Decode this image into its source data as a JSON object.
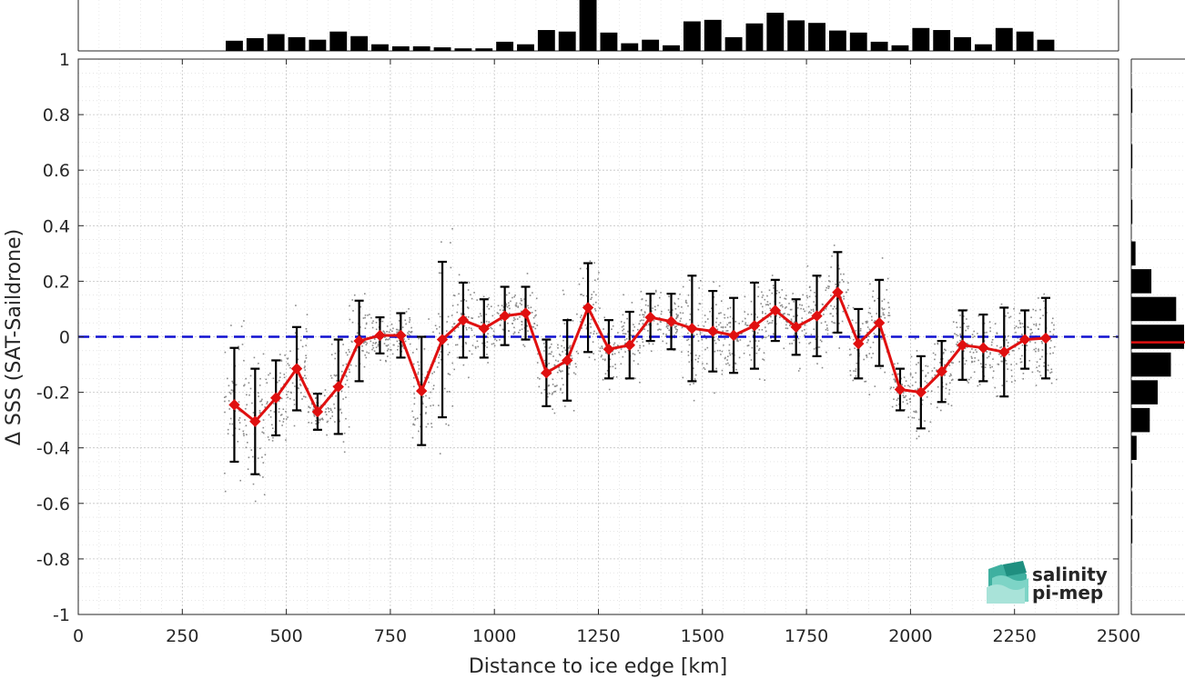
{
  "chart_data": {
    "type": "line",
    "xlabel": "Distance to ice edge [km]",
    "ylabel": "Δ SSS (SAT-Saildrone)",
    "xlim": [
      0,
      2500
    ],
    "ylim": [
      -1,
      1
    ],
    "x_ticks": [
      "0",
      "250",
      "500",
      "750",
      "1000",
      "1250",
      "1500",
      "1750",
      "2000",
      "2250",
      "2500"
    ],
    "y_ticks": [
      "-1",
      "-0.8",
      "-0.6",
      "-0.4",
      "-0.2",
      "0",
      "0.2",
      "0.4",
      "0.6",
      "0.8",
      "1"
    ],
    "grid": true,
    "reference_line": {
      "y": 0,
      "style": "dashed",
      "color": "#1010d0"
    },
    "series": [
      {
        "style": "red-line-with-diamonds",
        "color": "#e01010",
        "x": [
          375,
          425,
          475,
          525,
          575,
          625,
          675,
          725,
          775,
          825,
          875,
          925,
          975,
          1025,
          1075,
          1125,
          1175,
          1225,
          1275,
          1325,
          1375,
          1425,
          1475,
          1525,
          1575,
          1625,
          1675,
          1725,
          1775,
          1825,
          1875,
          1925,
          1975,
          2025,
          2075,
          2125,
          2175,
          2225,
          2275,
          2325
        ],
        "y": [
          -0.245,
          -0.305,
          -0.22,
          -0.115,
          -0.27,
          -0.18,
          -0.015,
          0.005,
          0.005,
          -0.195,
          -0.01,
          0.06,
          0.03,
          0.075,
          0.085,
          -0.13,
          -0.085,
          0.105,
          -0.045,
          -0.03,
          0.07,
          0.055,
          0.03,
          0.02,
          0.005,
          0.04,
          0.095,
          0.035,
          0.075,
          0.16,
          -0.025,
          0.05,
          -0.19,
          -0.2,
          -0.125,
          -0.03,
          -0.04,
          -0.055,
          -0.01,
          -0.005
        ],
        "error": [
          0.205,
          0.19,
          0.135,
          0.15,
          0.065,
          0.17,
          0.145,
          0.065,
          0.08,
          0.195,
          0.28,
          0.135,
          0.105,
          0.105,
          0.095,
          0.12,
          0.145,
          0.16,
          0.105,
          0.12,
          0.085,
          0.1,
          0.19,
          0.145,
          0.135,
          0.155,
          0.11,
          0.1,
          0.145,
          0.145,
          0.125,
          0.155,
          0.075,
          0.13,
          0.11,
          0.125,
          0.12,
          0.16,
          0.105,
          0.145
        ]
      }
    ],
    "top_histogram": {
      "bin_centers": [
        375,
        425,
        475,
        525,
        575,
        625,
        675,
        725,
        775,
        825,
        875,
        925,
        975,
        1025,
        1075,
        1125,
        1175,
        1225,
        1275,
        1325,
        1375,
        1425,
        1475,
        1525,
        1575,
        1625,
        1675,
        1725,
        1775,
        1825,
        1875,
        1925,
        1975,
        2025,
        2075,
        2125,
        2175,
        2225,
        2275,
        2325
      ],
      "relative_counts": [
        0.2,
        0.25,
        0.33,
        0.27,
        0.22,
        0.38,
        0.29,
        0.13,
        0.09,
        0.09,
        0.07,
        0.05,
        0.05,
        0.18,
        0.13,
        0.41,
        0.38,
        1.0,
        0.36,
        0.15,
        0.22,
        0.11,
        0.58,
        0.61,
        0.27,
        0.54,
        0.75,
        0.6,
        0.55,
        0.4,
        0.36,
        0.18,
        0.11,
        0.45,
        0.41,
        0.27,
        0.13,
        0.45,
        0.38,
        0.22
      ]
    },
    "right_histogram": {
      "bin_centers": [
        0.85,
        0.65,
        0.45,
        0.3,
        0.2,
        0.1,
        0.0,
        -0.1,
        -0.2,
        -0.3,
        -0.4,
        -0.5,
        -0.6,
        -0.7
      ],
      "relative_counts": [
        0.02,
        0.02,
        0.02,
        0.08,
        0.38,
        0.85,
        1.0,
        0.75,
        0.5,
        0.35,
        0.1,
        0.02,
        0.02,
        0.02
      ],
      "mean_line_y": -0.02,
      "mean_line_color": "#e01010"
    }
  },
  "logo": {
    "line1": "salinity",
    "line2": "pi-mep"
  }
}
